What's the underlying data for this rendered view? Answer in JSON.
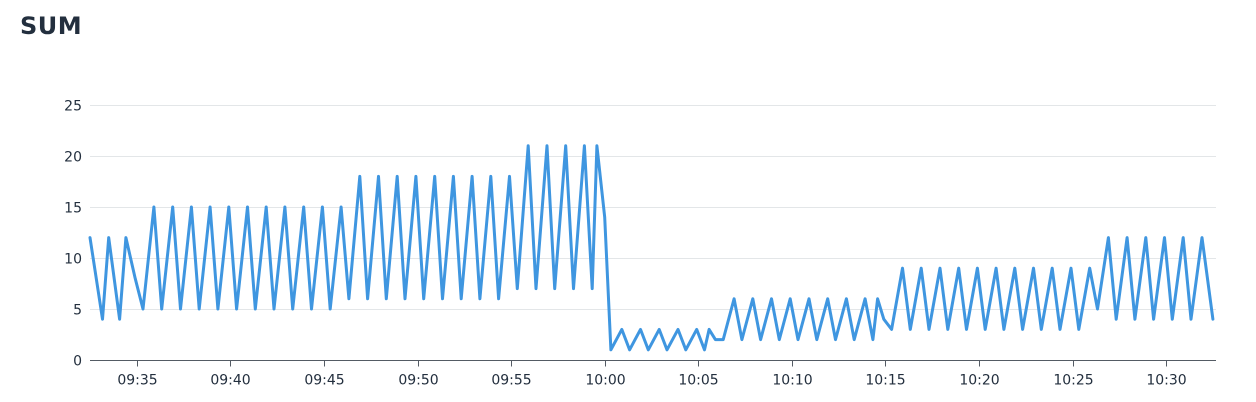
{
  "panel": {
    "title": "SUM"
  },
  "chart_data": {
    "type": "line",
    "title": "SUM",
    "xlabel": "",
    "ylabel": "",
    "ylim": [
      0,
      25
    ],
    "y_ticks": [
      0,
      5,
      10,
      15,
      20,
      25
    ],
    "xlim": [
      "09:32:30",
      "10:32:40"
    ],
    "x_ticks": [
      "09:35",
      "09:40",
      "09:45",
      "09:50",
      "09:55",
      "10:00",
      "10:05",
      "10:10",
      "10:15",
      "10:20",
      "10:25",
      "10:30"
    ],
    "grid": true,
    "legend": "none",
    "colors": {
      "series": "#3f96e0"
    },
    "series": [
      {
        "x": [
          "09:32:30",
          "09:33:10",
          "09:33:30",
          "09:34:05",
          "09:34:25",
          "09:34:55",
          "09:35:20",
          "09:35:55",
          "09:36:20",
          "09:36:55",
          "09:37:20",
          "09:37:55",
          "09:38:20",
          "09:38:55",
          "09:39:20",
          "09:39:55",
          "09:40:20",
          "09:40:55",
          "09:41:20",
          "09:41:55",
          "09:42:20",
          "09:42:55",
          "09:43:20",
          "09:43:55",
          "09:44:20",
          "09:44:55",
          "09:45:20",
          "09:45:55",
          "09:46:20",
          "09:46:55",
          "09:47:20",
          "09:47:55",
          "09:48:20",
          "09:48:55",
          "09:49:20",
          "09:49:55",
          "09:50:20",
          "09:50:55",
          "09:51:20",
          "09:51:55",
          "09:52:20",
          "09:52:55",
          "09:53:20",
          "09:53:55",
          "09:54:20",
          "09:54:55",
          "09:55:20",
          "09:55:55",
          "09:56:20",
          "09:56:55",
          "09:57:20",
          "09:57:55",
          "09:58:20",
          "09:58:55",
          "09:59:20",
          "09:59:35",
          "10:00:00",
          "10:00:20",
          "10:00:55",
          "10:01:20",
          "10:01:55",
          "10:02:20",
          "10:02:55",
          "10:03:20",
          "10:03:55",
          "10:04:20",
          "10:04:55",
          "10:05:20",
          "10:05:35",
          "10:05:55",
          "10:06:20",
          "10:06:55",
          "10:07:20",
          "10:07:55",
          "10:08:20",
          "10:08:55",
          "10:09:20",
          "10:09:55",
          "10:10:20",
          "10:10:55",
          "10:11:20",
          "10:11:55",
          "10:12:20",
          "10:12:55",
          "10:13:20",
          "10:13:55",
          "10:14:20",
          "10:14:35",
          "10:14:55",
          "10:15:20",
          "10:15:55",
          "10:16:20",
          "10:16:55",
          "10:17:20",
          "10:17:55",
          "10:18:20",
          "10:18:55",
          "10:19:20",
          "10:19:55",
          "10:20:20",
          "10:20:55",
          "10:21:20",
          "10:21:55",
          "10:22:20",
          "10:22:55",
          "10:23:20",
          "10:23:55",
          "10:24:20",
          "10:24:55",
          "10:25:20",
          "10:25:55",
          "10:26:20",
          "10:26:55",
          "10:27:20",
          "10:27:55",
          "10:28:20",
          "10:28:55",
          "10:29:20",
          "10:29:55",
          "10:30:20",
          "10:30:55",
          "10:31:20",
          "10:31:55",
          "10:32:30"
        ],
        "values": [
          12,
          4,
          12,
          4,
          12,
          8,
          5,
          15,
          5,
          15,
          5,
          15,
          5,
          15,
          5,
          15,
          5,
          15,
          5,
          15,
          5,
          15,
          5,
          15,
          5,
          15,
          5,
          15,
          6,
          18,
          6,
          18,
          6,
          18,
          6,
          18,
          6,
          18,
          6,
          18,
          6,
          18,
          6,
          18,
          6,
          18,
          7,
          21,
          7,
          21,
          7,
          21,
          7,
          21,
          7,
          21,
          14,
          1,
          3,
          1,
          3,
          1,
          3,
          1,
          3,
          1,
          3,
          1,
          3,
          2,
          2,
          6,
          2,
          6,
          2,
          6,
          2,
          6,
          2,
          6,
          2,
          6,
          2,
          6,
          2,
          6,
          2,
          6,
          4,
          3,
          9,
          3,
          9,
          3,
          9,
          3,
          9,
          3,
          9,
          3,
          9,
          3,
          9,
          3,
          9,
          3,
          9,
          3,
          9,
          3,
          9,
          5,
          12,
          4,
          12,
          4,
          12,
          4,
          12,
          4,
          12,
          4,
          12,
          4
        ]
      }
    ]
  }
}
